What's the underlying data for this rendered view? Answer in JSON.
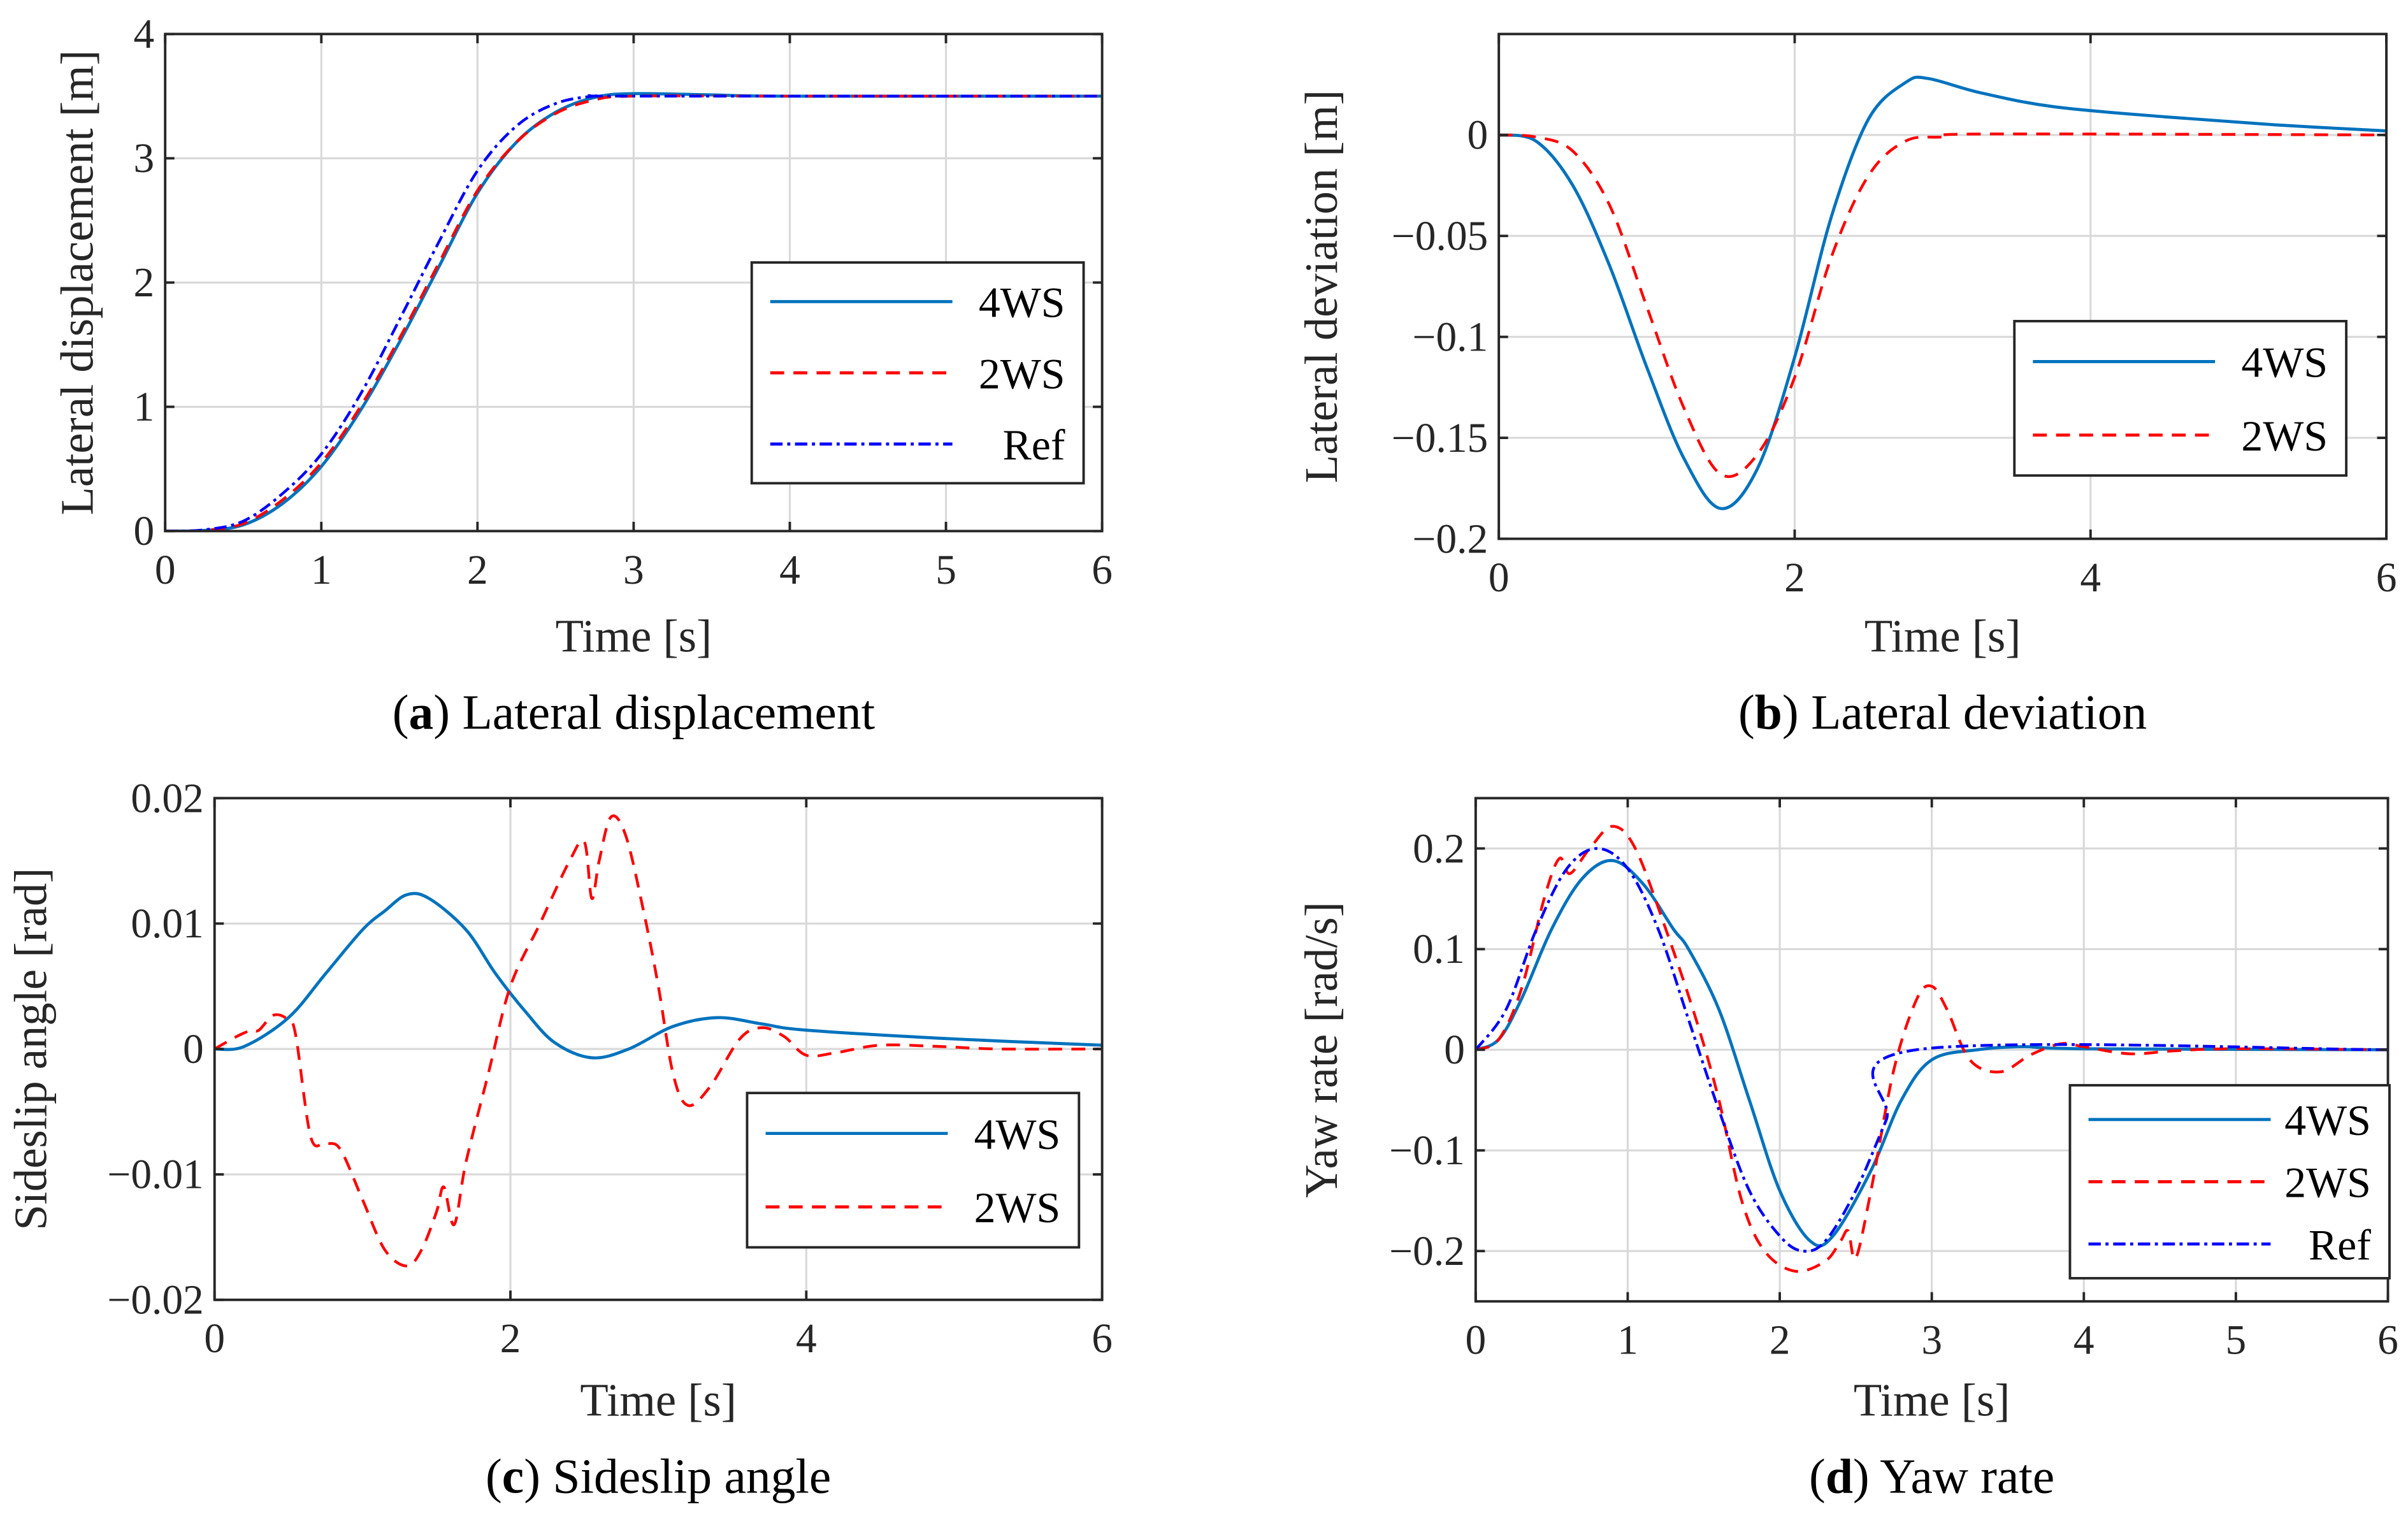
{
  "colors": {
    "4WS": "#0072BD",
    "2WS": "#FF0000",
    "Ref": "#0000FF"
  },
  "chart_data": [
    {
      "type": "line",
      "caption_letter": "a",
      "caption_text": " Lateral displacement",
      "xlabel": "Time [s]",
      "ylabel": "Lateral displacement [m]",
      "xlim": [
        0,
        6
      ],
      "ylim": [
        0,
        4
      ],
      "xticks": [
        0,
        1,
        2,
        3,
        4,
        5,
        6
      ],
      "xtick_labels": [
        "0",
        "1",
        "2",
        "3",
        "4",
        "5",
        "6"
      ],
      "yticks": [
        0,
        1,
        2,
        3,
        4
      ],
      "ytick_labels": [
        "0",
        "1",
        "2",
        "3",
        "4"
      ],
      "grid": true,
      "legend_position": "right",
      "series": [
        {
          "name": "4WS",
          "style": "solid",
          "x": [
            0,
            0.25,
            0.5,
            0.75,
            1,
            1.25,
            1.5,
            1.75,
            2,
            2.25,
            2.5,
            2.75,
            3,
            3.5,
            4,
            6
          ],
          "y": [
            0,
            0.005,
            0.05,
            0.22,
            0.52,
            0.97,
            1.52,
            2.12,
            2.72,
            3.13,
            3.37,
            3.49,
            3.52,
            3.51,
            3.5,
            3.5
          ]
        },
        {
          "name": "2WS",
          "style": "dashed",
          "x": [
            0,
            0.25,
            0.5,
            0.75,
            1,
            1.25,
            1.5,
            1.75,
            2,
            2.25,
            2.5,
            2.75,
            3,
            4,
            6
          ],
          "y": [
            0,
            0.006,
            0.06,
            0.25,
            0.55,
            1.0,
            1.55,
            2.15,
            2.74,
            3.13,
            3.36,
            3.47,
            3.5,
            3.5,
            3.5
          ]
        },
        {
          "name": "Ref",
          "style": "dashdot",
          "x": [
            0,
            0.25,
            0.5,
            0.75,
            1,
            1.25,
            1.5,
            1.75,
            2,
            2.25,
            2.5,
            2.75,
            3,
            6
          ],
          "y": [
            0,
            0.01,
            0.08,
            0.3,
            0.62,
            1.1,
            1.7,
            2.32,
            2.9,
            3.26,
            3.44,
            3.5,
            3.5,
            3.5
          ]
        }
      ]
    },
    {
      "type": "line",
      "caption_letter": "b",
      "caption_text": " Lateral deviation",
      "xlabel": "Time [s]",
      "ylabel": "Lateral deviation [m]",
      "xlim": [
        0,
        6
      ],
      "ylim": [
        -0.2,
        0.05
      ],
      "xticks": [
        0,
        2,
        4,
        6
      ],
      "xtick_labels": [
        "0",
        "2",
        "4",
        "6"
      ],
      "yticks": [
        0,
        -0.05,
        -0.1,
        -0.15,
        -0.2
      ],
      "ytick_labels": [
        "0",
        "−0.05",
        "−0.1",
        "−0.15",
        "−0.2"
      ],
      "grid": true,
      "legend_position": "right",
      "series": [
        {
          "name": "4WS",
          "style": "solid",
          "x": [
            0,
            0.25,
            0.5,
            0.75,
            1,
            1.25,
            1.5,
            1.75,
            2,
            2.25,
            2.5,
            2.75,
            2.9,
            3.25,
            3.75,
            4.5,
            5.25,
            6
          ],
          "y": [
            0,
            -0.003,
            -0.025,
            -0.065,
            -0.115,
            -0.16,
            -0.185,
            -0.165,
            -0.11,
            -0.04,
            0.008,
            0.026,
            0.028,
            0.021,
            0.014,
            0.009,
            0.005,
            0.002
          ]
        },
        {
          "name": "2WS",
          "style": "dashed",
          "x": [
            0,
            0.25,
            0.5,
            0.75,
            1,
            1.25,
            1.5,
            1.75,
            2,
            2.25,
            2.5,
            2.75,
            3,
            3.3,
            6
          ],
          "y": [
            0,
            -0.001,
            -0.008,
            -0.035,
            -0.085,
            -0.135,
            -0.168,
            -0.158,
            -0.12,
            -0.06,
            -0.02,
            -0.003,
            -0.001,
            0.0005,
            0
          ]
        }
      ]
    },
    {
      "type": "line",
      "caption_letter": "c",
      "caption_text": " Sideslip angle",
      "xlabel": "Time [s]",
      "ylabel": "Sideslip angle [rad]",
      "xlim": [
        0,
        6
      ],
      "ylim": [
        -0.02,
        0.02
      ],
      "xticks": [
        0,
        2,
        4,
        6
      ],
      "xtick_labels": [
        "0",
        "2",
        "4",
        "6"
      ],
      "yticks": [
        0.02,
        0.01,
        0,
        -0.01,
        -0.02
      ],
      "ytick_labels": [
        "0.02",
        "0.01",
        "0",
        "−0.01",
        "−0.02"
      ],
      "grid": true,
      "legend_position": "lower-right",
      "series": [
        {
          "name": "4WS",
          "style": "solid",
          "x": [
            0,
            0.2,
            0.5,
            0.75,
            1,
            1.15,
            1.3,
            1.45,
            1.7,
            1.9,
            2.1,
            2.3,
            2.55,
            2.8,
            3.1,
            3.4,
            3.7,
            4,
            5,
            6
          ],
          "y": [
            0,
            0.0002,
            0.0025,
            0.006,
            0.0095,
            0.011,
            0.0123,
            0.012,
            0.0095,
            0.006,
            0.003,
            0.0005,
            -0.0007,
            0,
            0.0018,
            0.0025,
            0.002,
            0.0015,
            0.0008,
            0.0003
          ]
        },
        {
          "name": "2WS",
          "style": "dashed",
          "x": [
            0,
            0.15,
            0.25,
            0.3,
            0.4,
            0.5,
            0.55,
            0.65,
            0.75,
            0.85,
            1.0,
            1.15,
            1.3,
            1.4,
            1.5,
            1.55,
            1.62,
            1.7,
            1.85,
            2.0,
            2.2,
            2.4,
            2.5,
            2.55,
            2.6,
            2.68,
            2.78,
            2.9,
            3.0,
            3.1,
            3.2,
            3.35,
            3.55,
            3.7,
            3.85,
            4.0,
            4.2,
            4.5,
            4.9,
            5.3,
            6
          ],
          "y": [
            0,
            0.001,
            0.0015,
            0.0015,
            0.0027,
            0.0023,
            0.001,
            -0.007,
            -0.0075,
            -0.008,
            -0.012,
            -0.016,
            -0.0173,
            -0.016,
            -0.013,
            -0.011,
            -0.014,
            -0.009,
            -0.002,
            0.005,
            0.01,
            0.015,
            0.0165,
            0.012,
            0.015,
            0.0185,
            0.017,
            0.011,
            0.005,
            -0.002,
            -0.0045,
            -0.003,
            0.0008,
            0.0017,
            0.001,
            -0.0005,
            -0.0003,
            0.0003,
            0.0002,
            0,
            0
          ]
        }
      ]
    },
    {
      "type": "line",
      "caption_letter": "d",
      "caption_text": " Yaw rate",
      "xlabel": "Time [s]",
      "ylabel": "Yaw rate [rad/s]",
      "xlim": [
        0,
        6
      ],
      "ylim": [
        -0.25,
        0.25
      ],
      "xticks": [
        0,
        1,
        2,
        3,
        4,
        5,
        6
      ],
      "xtick_labels": [
        "0",
        "1",
        "2",
        "3",
        "4",
        "5",
        "6"
      ],
      "yticks": [
        0.2,
        0.1,
        0,
        -0.1,
        -0.2
      ],
      "ytick_labels": [
        "0.2",
        "0.1",
        "0",
        "−0.1",
        "−0.2"
      ],
      "grid": true,
      "legend_position": "lower-right",
      "series": [
        {
          "name": "4WS",
          "style": "solid",
          "x": [
            0,
            0.15,
            0.3,
            0.5,
            0.7,
            0.9,
            1.1,
            1.3,
            1.4,
            1.6,
            1.8,
            2.0,
            2.2,
            2.35,
            2.6,
            2.8,
            3.0,
            3.3,
            3.6,
            4,
            6
          ],
          "y": [
            0,
            0.01,
            0.05,
            0.12,
            0.17,
            0.188,
            0.165,
            0.12,
            0.1,
            0.04,
            -0.05,
            -0.14,
            -0.19,
            -0.185,
            -0.12,
            -0.05,
            -0.01,
            0,
            0.003,
            0.001,
            0
          ]
        },
        {
          "name": "2WS",
          "style": "dashed",
          "x": [
            0,
            0.15,
            0.3,
            0.45,
            0.55,
            0.62,
            0.75,
            0.9,
            1.05,
            1.25,
            1.45,
            1.6,
            1.75,
            1.9,
            2.1,
            2.3,
            2.4,
            2.45,
            2.5,
            2.6,
            2.75,
            2.9,
            3.0,
            3.1,
            3.25,
            3.45,
            3.65,
            3.85,
            4.0,
            4.3,
            4.6,
            5,
            6
          ],
          "y": [
            0,
            0.01,
            0.06,
            0.15,
            0.19,
            0.175,
            0.2,
            0.222,
            0.2,
            0.12,
            0.03,
            -0.05,
            -0.15,
            -0.2,
            -0.22,
            -0.21,
            -0.19,
            -0.18,
            -0.207,
            -0.14,
            -0.02,
            0.05,
            0.063,
            0.04,
            -0.01,
            -0.022,
            -0.005,
            0.006,
            0.003,
            -0.004,
            -0.001,
            0.001,
            0
          ]
        },
        {
          "name": "Ref",
          "style": "dashdot",
          "x": [
            0,
            0.2,
            0.4,
            0.6,
            0.8,
            1.0,
            1.2,
            1.4,
            1.6,
            1.8,
            2.0,
            2.15,
            2.3,
            2.5,
            2.7,
            2.9,
            6
          ],
          "y": [
            0,
            0.04,
            0.12,
            0.18,
            0.2,
            0.18,
            0.12,
            0.03,
            -0.06,
            -0.14,
            -0.185,
            -0.2,
            -0.19,
            -0.14,
            -0.07,
            0,
            0
          ]
        }
      ]
    }
  ]
}
